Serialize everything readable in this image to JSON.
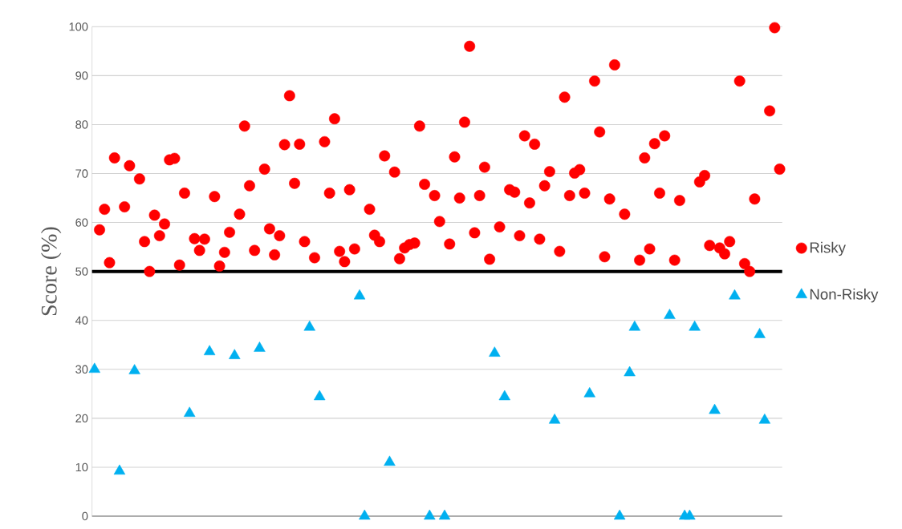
{
  "chart_data": {
    "type": "scatter",
    "ylabel": "Score (%)",
    "categories": [
      null,
      null,
      null,
      null,
      null,
      null,
      null,
      null,
      null,
      null,
      null,
      null,
      null,
      null,
      null,
      null,
      null,
      null,
      null,
      null,
      null,
      null,
      null,
      null,
      null,
      null,
      null,
      null,
      null,
      null,
      null,
      null,
      null,
      null,
      null,
      null,
      null,
      null,
      null,
      null,
      null,
      null,
      null,
      null,
      null,
      null,
      null,
      null,
      null,
      null,
      null,
      null,
      null,
      null,
      null,
      null,
      null,
      null,
      null,
      null,
      null,
      null,
      null,
      null,
      null,
      null,
      null,
      null,
      null,
      null,
      null,
      null,
      null,
      null,
      null,
      null,
      null,
      null,
      null,
      null,
      null,
      null,
      null,
      null,
      null,
      null,
      null,
      null,
      null,
      null,
      null,
      null,
      null,
      null,
      null,
      null,
      null,
      null,
      null,
      null,
      null,
      null,
      null,
      null,
      null,
      null,
      null,
      null,
      null,
      null,
      null,
      null,
      null,
      null,
      null,
      null,
      null,
      null,
      null,
      null,
      null,
      null,
      null,
      null,
      null,
      null,
      null,
      null,
      null,
      null,
      null,
      null,
      null,
      null,
      null,
      null,
      null,
      null
    ],
    "ylim": [
      0,
      100
    ],
    "yticks": [
      0,
      10,
      20,
      30,
      40,
      50,
      60,
      70,
      80,
      90,
      100
    ],
    "grid": "y",
    "legend": "right",
    "ref_lines": [
      {
        "axis": "y",
        "value": 50,
        "color": "#000000"
      }
    ],
    "series": [
      {
        "name": "Risky",
        "color": "#ff0000",
        "marker": "circle",
        "values": [
          null,
          58.5,
          62.7,
          51.8,
          73.2,
          null,
          63.2,
          71.6,
          null,
          68.9,
          56.1,
          50,
          61.5,
          57.3,
          59.7,
          72.8,
          73.1,
          51.3,
          66,
          null,
          56.7,
          54.3,
          56.6,
          null,
          65.3,
          51.1,
          53.9,
          58,
          null,
          61.7,
          79.7,
          67.5,
          54.3,
          null,
          70.9,
          58.7,
          53.4,
          57.3,
          75.9,
          85.9,
          68,
          76,
          56.1,
          null,
          52.8,
          null,
          76.5,
          66,
          81.2,
          54.1,
          52,
          66.7,
          54.6,
          null,
          null,
          62.7,
          57.4,
          56.1,
          73.6,
          null,
          70.3,
          52.6,
          54.8,
          55.5,
          55.8,
          79.7,
          67.8,
          null,
          65.5,
          60.2,
          null,
          55.6,
          73.4,
          65,
          80.5,
          96,
          57.9,
          65.5,
          71.3,
          52.5,
          null,
          59.1,
          null,
          66.7,
          66.2,
          57.3,
          77.7,
          64,
          76,
          56.6,
          67.5,
          70.4,
          null,
          54.1,
          85.6,
          65.5,
          70.1,
          70.8,
          66,
          null,
          88.9,
          78.5,
          53,
          64.8,
          92.2,
          null,
          61.7,
          null,
          null,
          52.3,
          73.2,
          54.6,
          76.1,
          66,
          77.7,
          null,
          52.3,
          64.5,
          null,
          null,
          null,
          68.3,
          69.6,
          55.3,
          null,
          54.8,
          53.6,
          56.1,
          null,
          88.9,
          51.6,
          50,
          64.8,
          null,
          null,
          82.8,
          99.8,
          70.9
        ]
      },
      {
        "name": "Non-Risky",
        "color": "#00b0f0",
        "marker": "triangle",
        "values": [
          30,
          null,
          null,
          null,
          null,
          9.2,
          null,
          null,
          29.7,
          null,
          null,
          null,
          null,
          null,
          null,
          null,
          null,
          null,
          null,
          21,
          null,
          null,
          null,
          33.6,
          null,
          null,
          null,
          null,
          32.8,
          null,
          null,
          null,
          null,
          34.3,
          null,
          null,
          null,
          null,
          null,
          null,
          null,
          null,
          null,
          38.6,
          null,
          24.4,
          null,
          null,
          null,
          null,
          null,
          null,
          null,
          45,
          0,
          null,
          null,
          null,
          null,
          11,
          null,
          null,
          null,
          null,
          null,
          null,
          null,
          0,
          null,
          null,
          0,
          null,
          null,
          null,
          null,
          null,
          null,
          null,
          null,
          null,
          33.3,
          null,
          24.4,
          null,
          null,
          null,
          null,
          null,
          null,
          null,
          null,
          null,
          19.6,
          null,
          null,
          null,
          null,
          null,
          null,
          25,
          null,
          null,
          null,
          null,
          null,
          0,
          null,
          29.3,
          38.6,
          null,
          null,
          null,
          null,
          null,
          null,
          41,
          null,
          null,
          0,
          0,
          38.6,
          null,
          null,
          null,
          21.6,
          null,
          null,
          null,
          45,
          null,
          null,
          null,
          null,
          37.1,
          19.6,
          null,
          null,
          null
        ]
      }
    ]
  }
}
